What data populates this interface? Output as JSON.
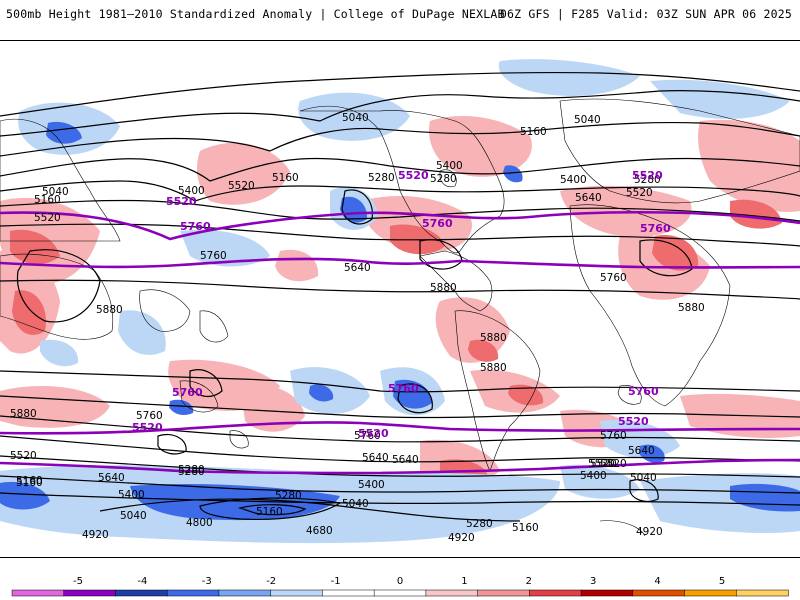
{
  "header": {
    "title": "500mb Height 1981–2010 Standardized Anomaly | College of DuPage NEXLAB",
    "run_info": "06Z GFS | F285 Valid: 03Z SUN APR 06 2025"
  },
  "colors": {
    "contour": "#000000",
    "highlight_contour": "#8b00b8",
    "positive_anomaly": "#f7b3b6",
    "strong_positive_anomaly": "#ee6b6e",
    "negative_anomaly": "#bcd6f6",
    "strong_negative_anomaly": "#3d6be8"
  },
  "contour_labels": [
    "5040",
    "5040",
    "5160",
    "5160",
    "5280",
    "5400",
    "5520",
    "5400",
    "5280",
    "5160",
    "5040",
    "5400",
    "5280",
    "5520",
    "5640",
    "5520",
    "5760",
    "5640",
    "5760",
    "5880",
    "5880",
    "5880",
    "5880",
    "5880",
    "5760",
    "5640",
    "5880",
    "5760",
    "5520",
    "5640",
    "5520",
    "5400",
    "5280",
    "5160",
    "5040",
    "4920",
    "4800",
    "4680",
    "4800",
    "4920",
    "5040",
    "5160",
    "5280",
    "5400",
    "5520",
    "5640",
    "5760",
    "5160",
    "5280",
    "5400",
    "5520",
    "5640",
    "5040",
    "4920",
    "5160",
    "5280"
  ],
  "purple_labels": [
    "5520",
    "5520",
    "5520",
    "5760",
    "5760",
    "5760",
    "5760",
    "5760",
    "5760",
    "5520",
    "5520",
    "5520"
  ],
  "colorbar": {
    "ticks": [
      "-5",
      "-4",
      "-3",
      "-2",
      "-1",
      "0",
      "1",
      "2",
      "3",
      "4",
      "5"
    ],
    "colors": [
      "#e066e0",
      "#8a00c0",
      "#1c3fa8",
      "#3d6be8",
      "#78a6f0",
      "#bcd6f6",
      "#ffffff",
      "#ffffff",
      "#f7c6c8",
      "#f09598",
      "#e04046",
      "#b00000",
      "#e05000",
      "#f5a000",
      "#ffd060"
    ]
  }
}
